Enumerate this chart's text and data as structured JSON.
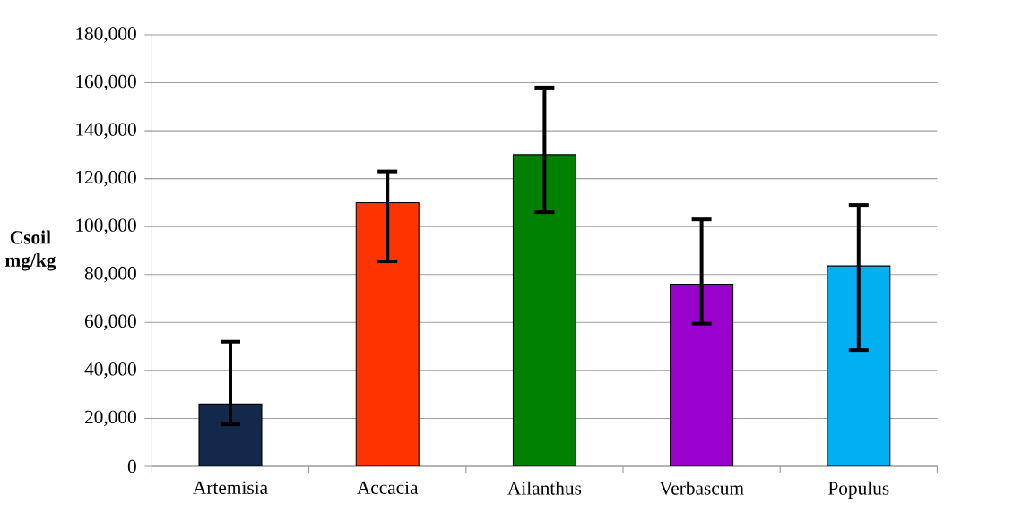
{
  "chart_data": {
    "type": "bar",
    "ylabel": "Csoil mg/kg",
    "categories": [
      "Artemisia",
      "Accacia",
      "Ailanthus",
      "Verbascum",
      "Populus"
    ],
    "values": [
      26000,
      110000,
      130000,
      76000,
      83600
    ],
    "colors": [
      "#13294b",
      "#ff3300",
      "#008000",
      "#9900cc",
      "#00b0f0"
    ],
    "errors": [
      [
        17500,
        52000
      ],
      [
        85500,
        123000
      ],
      [
        106000,
        158000
      ],
      [
        59500,
        103000
      ],
      [
        48500,
        109000
      ]
    ],
    "ylim": [
      0,
      180000
    ],
    "yticks": [
      0,
      {
        "value": 20000,
        "label": "20,000"
      },
      {
        "value": 40000,
        "label": "40,000"
      },
      {
        "value": 60000,
        "label": "60,000"
      },
      {
        "value": 80000,
        "label": "80,000"
      },
      {
        "value": 100000,
        "label": "100,000"
      },
      {
        "value": 120000,
        "label": "120,000"
      },
      {
        "value": 140000,
        "label": "140,000"
      },
      {
        "value": 160000,
        "label": "160,000"
      },
      {
        "value": 180000,
        "label": "180,000"
      }
    ],
    "grid": "y"
  }
}
